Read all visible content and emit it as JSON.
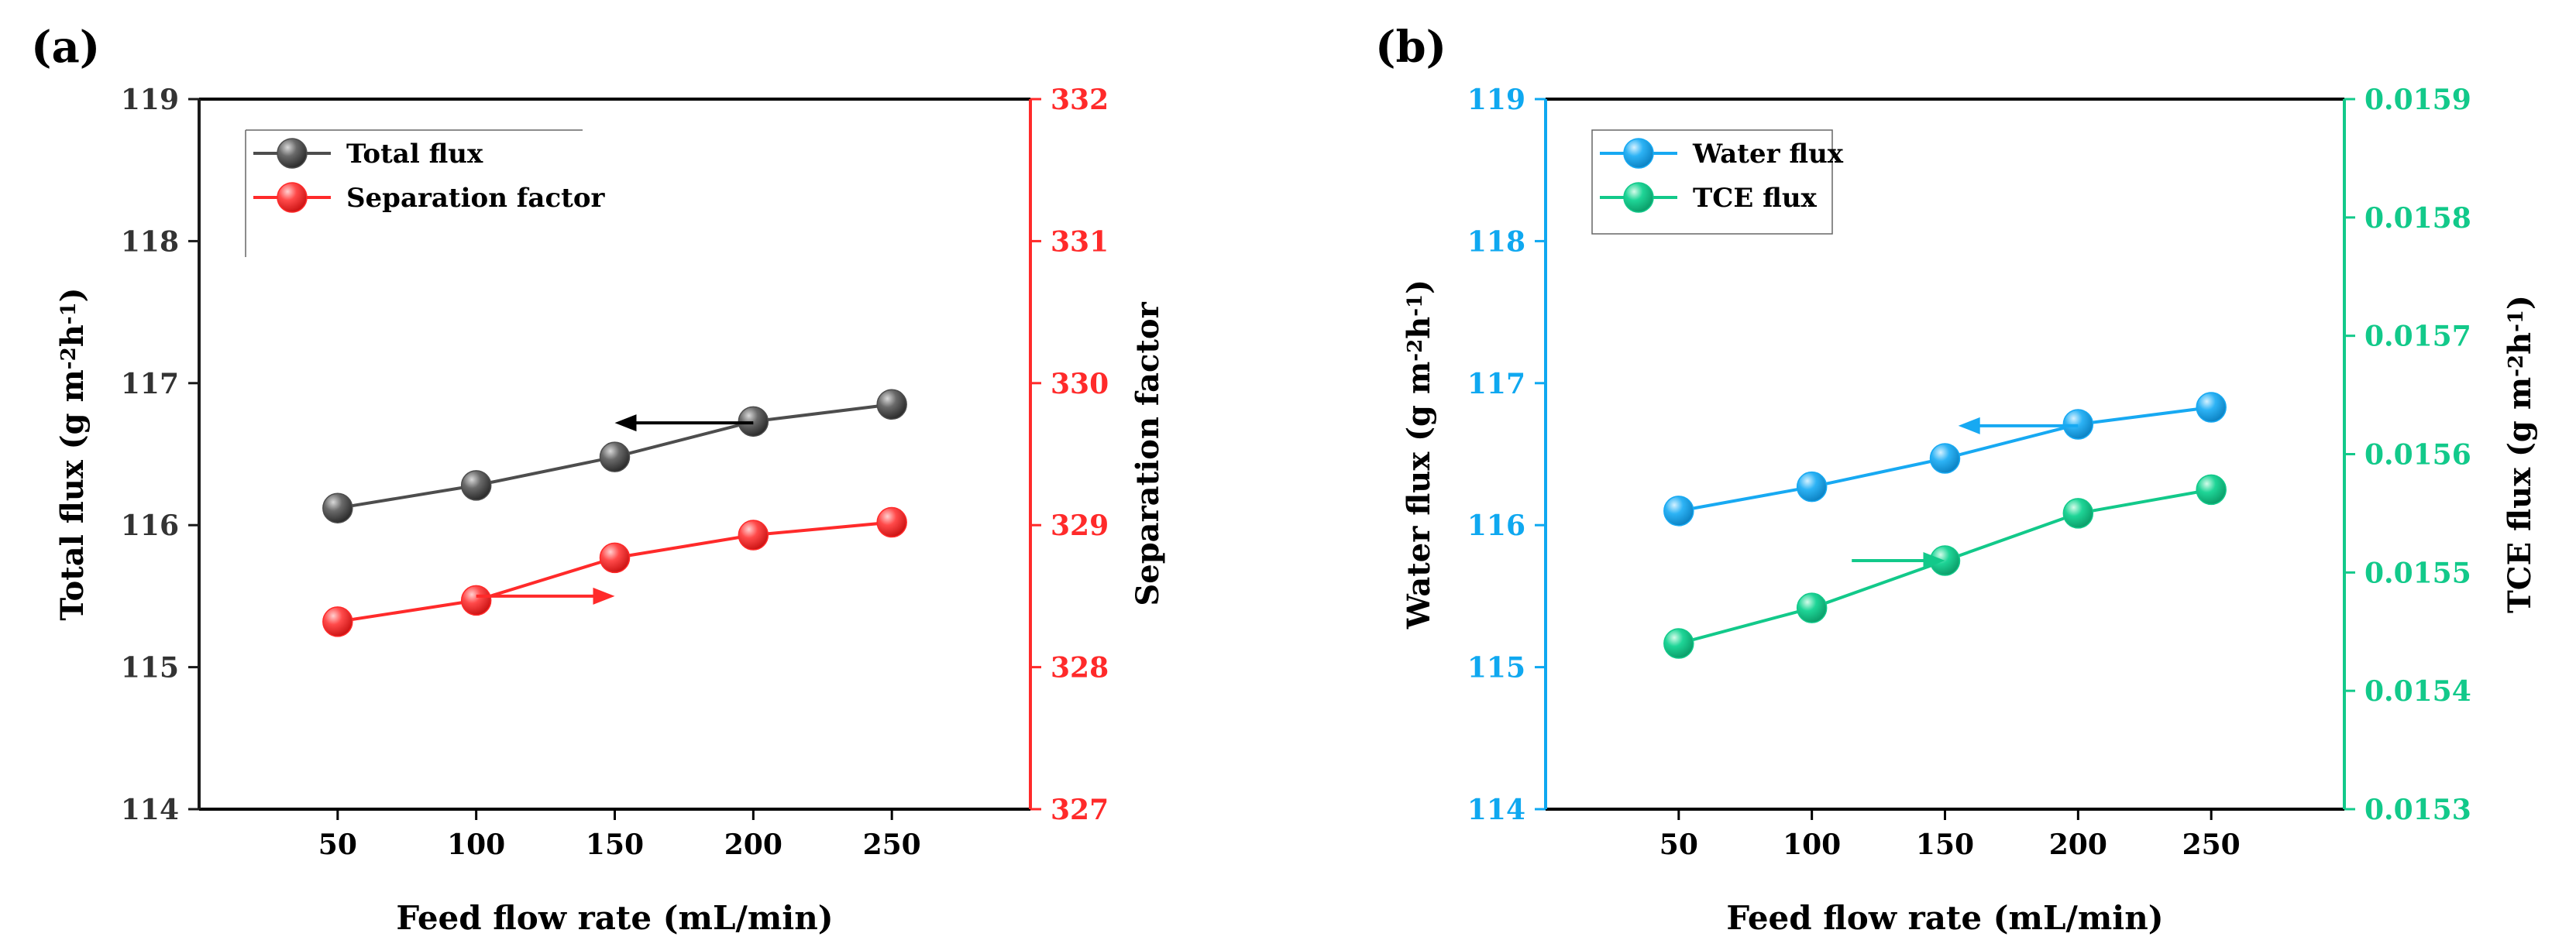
{
  "chart_data": [
    {
      "panel_label": "(a)",
      "type": "line",
      "x": [
        50,
        100,
        150,
        200,
        250
      ],
      "xlim": [
        0,
        300
      ],
      "xticks": [
        50,
        100,
        150,
        200,
        250
      ],
      "xlabel": "Feed flow rate (mL/min)",
      "left_axis": {
        "label_main": "Total flux (g m",
        "label_sup1": "-2",
        "label_mid": "h",
        "label_sup2": "-1",
        "label_end": ")",
        "ylim": [
          114,
          119
        ],
        "ticks": [
          114,
          115,
          116,
          117,
          118,
          119
        ],
        "color": "#1a1a1a"
      },
      "right_axis": {
        "label": "Separation factor",
        "ylim": [
          327,
          332
        ],
        "ticks": [
          327,
          328,
          329,
          330,
          331,
          332
        ],
        "color": "#ff2a2a"
      },
      "series": [
        {
          "name": "Total flux",
          "axis": "left",
          "values": [
            116.12,
            116.28,
            116.48,
            116.73,
            116.85
          ],
          "color": "#4d4d4d"
        },
        {
          "name": "Separation factor",
          "axis": "right",
          "values": [
            328.32,
            328.47,
            328.77,
            328.93,
            329.02
          ],
          "color": "#ff2a2a"
        }
      ],
      "arrows": [
        {
          "axis": "left",
          "from_x": 200,
          "to_x": 150,
          "y": 116.72,
          "color": "#000000"
        },
        {
          "axis": "right",
          "from_x": 100,
          "to_x": 150,
          "y": 328.5,
          "color": "#ff2a2a"
        }
      ],
      "legend_position": "top-left"
    },
    {
      "panel_label": "(b)",
      "type": "line",
      "x": [
        50,
        100,
        150,
        200,
        250
      ],
      "xlim": [
        0,
        300
      ],
      "xticks": [
        50,
        100,
        150,
        200,
        250
      ],
      "xlabel": "Feed flow rate (mL/min)",
      "left_axis": {
        "label_main": "Water flux (g m",
        "label_sup1": "-2",
        "label_mid": "h",
        "label_sup2": "-1",
        "label_end": ")",
        "ylim": [
          114,
          119
        ],
        "ticks": [
          114,
          115,
          116,
          117,
          118,
          119
        ],
        "color": "#0fa8f0"
      },
      "right_axis": {
        "label_main": "TCE flux (g m",
        "label_sup1": "-2",
        "label_mid": "h",
        "label_sup2": "-1",
        "label_end": ")",
        "ylim": [
          0.0153,
          0.0159
        ],
        "ticks": [
          "0.0153",
          "0.0154",
          "0.0155",
          "0.0156",
          "0.0157",
          "0.0158",
          "0.0159"
        ],
        "color": "#12c98a"
      },
      "series": [
        {
          "name": "Water flux",
          "axis": "left",
          "values": [
            116.1,
            116.27,
            116.47,
            116.71,
            116.83
          ],
          "color": "#17a9f2"
        },
        {
          "name": "TCE flux",
          "axis": "right",
          "values": [
            0.01544,
            0.01547,
            0.01551,
            0.01555,
            0.01557
          ],
          "color": "#12c98a"
        }
      ],
      "arrows": [
        {
          "axis": "left",
          "from_x": 200,
          "to_x": 155,
          "y": 116.7,
          "color": "#17a9f2"
        },
        {
          "axis": "right",
          "from_x": 115,
          "to_x": 150,
          "y": 0.01551,
          "color": "#12c98a"
        }
      ],
      "legend_position": "top-left"
    }
  ]
}
